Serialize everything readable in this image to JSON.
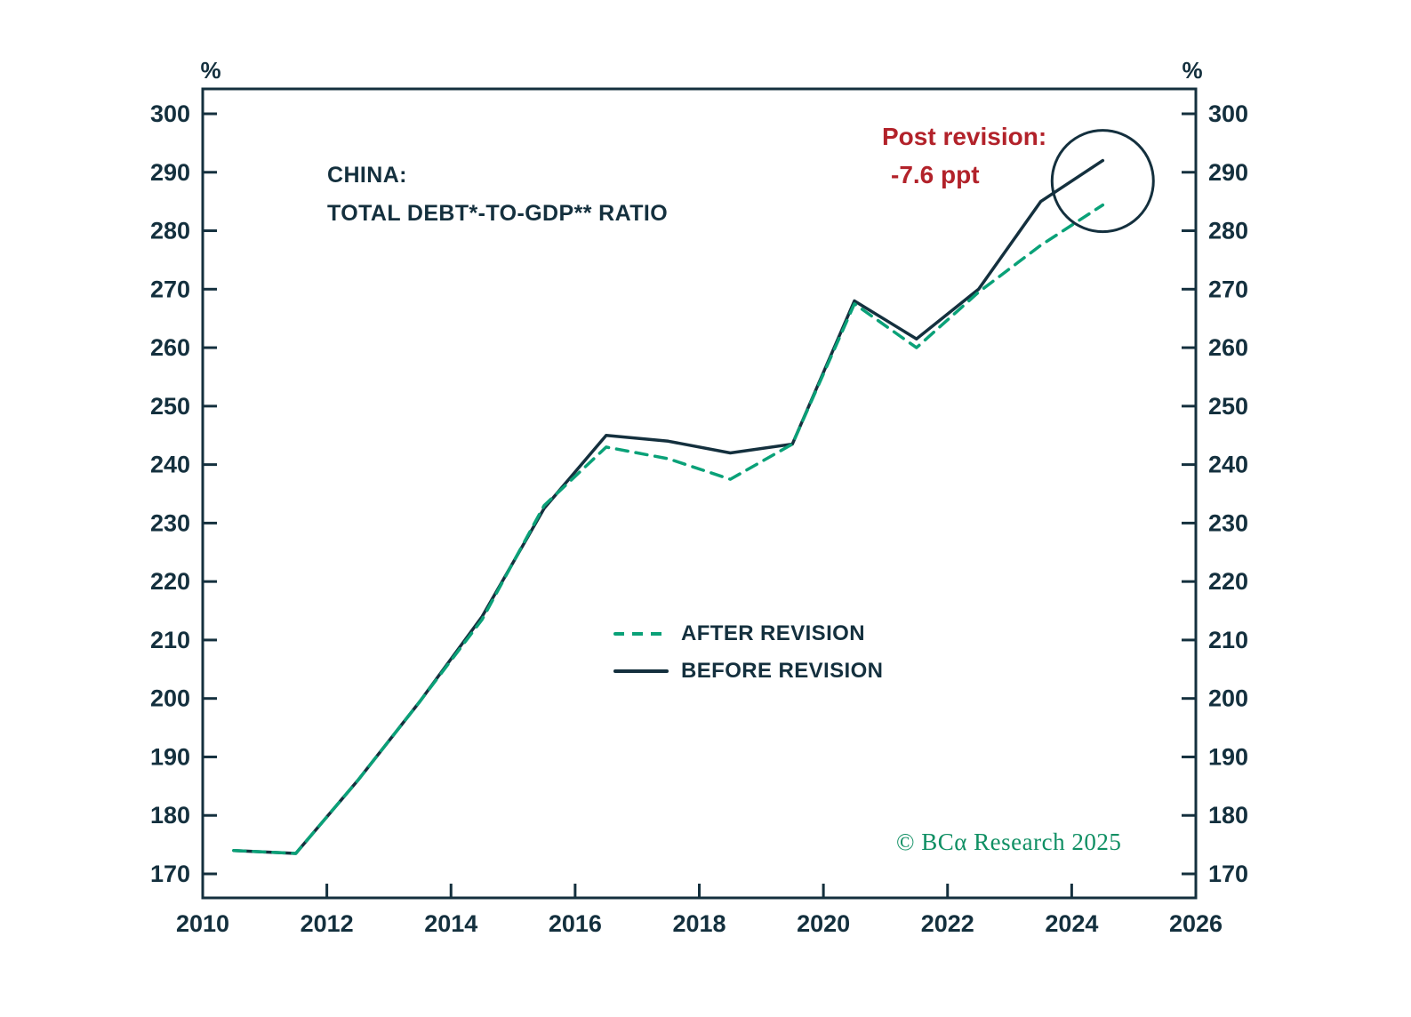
{
  "title": {
    "line1": "CHINA:",
    "line2": "TOTAL DEBT*-TO-GDP** RATIO"
  },
  "annotation": {
    "line1": "Post revision:",
    "line2": "-7.6 ppt",
    "color": "#b2222a"
  },
  "legend": [
    {
      "label": "AFTER REVISION",
      "style": "dashed",
      "color": "#0aa178"
    },
    {
      "label": "BEFORE REVISION",
      "style": "solid",
      "color": "#14303e"
    }
  ],
  "copyright": "© BCα Research 2025",
  "axis": {
    "y_unit_left": "%",
    "y_unit_right": "%",
    "y_ticks": [
      170,
      180,
      190,
      200,
      210,
      220,
      230,
      240,
      250,
      260,
      270,
      280,
      290,
      300
    ],
    "x_ticks": [
      2010,
      2012,
      2014,
      2016,
      2018,
      2020,
      2022,
      2024,
      2026
    ]
  },
  "colors": {
    "dark_navy": "#14303e",
    "green": "#0aa178",
    "red": "#b2222a",
    "copyright_green": "#0f8f63"
  },
  "chart_data": {
    "type": "line",
    "title": "CHINA: TOTAL DEBT*-TO-GDP** RATIO",
    "ylabel": "%",
    "xlim": [
      2010,
      2026
    ],
    "ylim": [
      170,
      300
    ],
    "grid": false,
    "legend_position": "center-bottom-inside",
    "x": [
      2010.5,
      2011.5,
      2012.5,
      2013.5,
      2014.5,
      2015.5,
      2016.5,
      2017.5,
      2018.5,
      2019.5,
      2020.5,
      2021.5,
      2022.5,
      2023.5,
      2024.5
    ],
    "series": [
      {
        "name": "BEFORE REVISION",
        "style": "solid",
        "color": "#14303e",
        "values": [
          174,
          173.5,
          186,
          199.5,
          214,
          232.5,
          245,
          244,
          242,
          243.5,
          268,
          261.5,
          270,
          285,
          292
        ]
      },
      {
        "name": "AFTER REVISION",
        "style": "dashed",
        "color": "#0aa178",
        "values": [
          174,
          173.5,
          186,
          199.5,
          213.5,
          233,
          243,
          241,
          237.5,
          243.5,
          267.5,
          260,
          269.5,
          277.5,
          284.4
        ]
      }
    ],
    "annotation_circle": {
      "x": 2024.5,
      "y": 288.5,
      "radius_px": 57
    },
    "annotation_text": "Post revision: -7.6 ppt"
  }
}
